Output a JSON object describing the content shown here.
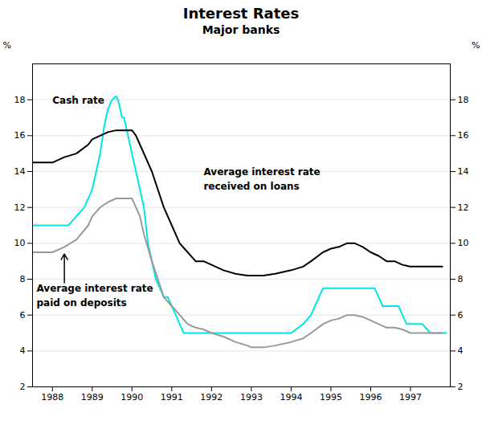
{
  "chart_data": {
    "type": "line",
    "title": "Interest Rates",
    "subtitle": "Major banks",
    "ylabel": "%",
    "y2label": "%",
    "xlim": [
      1987.5,
      1998.0
    ],
    "xticks": [
      1988,
      1989,
      1990,
      1991,
      1992,
      1993,
      1994,
      1995,
      1996,
      1997
    ],
    "ylim": [
      2,
      20
    ],
    "yticks": [
      2,
      4,
      6,
      8,
      10,
      12,
      14,
      16,
      18
    ],
    "y2lim": [
      2,
      20
    ],
    "y2ticks": [
      2,
      4,
      6,
      8,
      10,
      12,
      14,
      16,
      18
    ],
    "grid": true,
    "series": [
      {
        "color": "#00e5e5",
        "x": [
          1987.5,
          1987.7,
          1987.9,
          1988.0,
          1988.2,
          1988.4,
          1988.6,
          1988.8,
          1989.0,
          1989.1,
          1989.2,
          1989.3,
          1989.4,
          1989.5,
          1989.6,
          1989.65,
          1989.7,
          1989.75,
          1989.8,
          1990.0,
          1990.1,
          1990.2,
          1990.3,
          1990.4,
          1990.5,
          1990.6,
          1990.7,
          1990.8,
          1990.9,
          1991.0,
          1991.1,
          1991.2,
          1991.3,
          1991.4,
          1991.5,
          1991.6,
          1991.8,
          1992.0,
          1992.3,
          1992.6,
          1993.0,
          1993.5,
          1994.0,
          1994.3,
          1994.5,
          1994.6,
          1994.7,
          1994.8,
          1994.9,
          1995.0,
          1995.1,
          1995.2,
          1995.3,
          1995.5,
          1995.7,
          1995.8,
          1995.9,
          1996.0,
          1996.1,
          1996.2,
          1996.3,
          1996.4,
          1996.5,
          1996.6,
          1996.7,
          1996.8,
          1996.9,
          1997.0,
          1997.1,
          1997.2,
          1997.3,
          1997.5,
          1997.7,
          1997.9
        ],
        "values": [
          11.0,
          11.0,
          11.0,
          11.0,
          11.0,
          11.0,
          11.5,
          12.0,
          13.0,
          14.0,
          15.0,
          16.5,
          17.5,
          18.0,
          18.2,
          18.0,
          17.5,
          17.0,
          17.0,
          15.0,
          14.0,
          13.0,
          12.0,
          10.0,
          9.0,
          8.0,
          7.5,
          7.0,
          7.0,
          6.5,
          6.0,
          5.5,
          5.0,
          5.0,
          5.0,
          5.0,
          5.0,
          5.0,
          5.0,
          5.0,
          5.0,
          5.0,
          5.0,
          5.5,
          6.0,
          6.5,
          7.0,
          7.5,
          7.5,
          7.5,
          7.5,
          7.5,
          7.5,
          7.5,
          7.5,
          7.5,
          7.5,
          7.5,
          7.5,
          7.0,
          6.5,
          6.5,
          6.5,
          6.5,
          6.5,
          6.0,
          5.5,
          5.5,
          5.5,
          5.5,
          5.5,
          5.0,
          5.0,
          5.0
        ]
      },
      {
        "color": "#000000",
        "x": [
          1987.5,
          1987.7,
          1988.0,
          1988.3,
          1988.6,
          1988.9,
          1989.0,
          1989.2,
          1989.4,
          1989.6,
          1989.8,
          1990.0,
          1990.1,
          1990.2,
          1990.3,
          1990.5,
          1990.8,
          1991.0,
          1991.2,
          1991.4,
          1991.6,
          1991.8,
          1992.0,
          1992.3,
          1992.6,
          1992.9,
          1993.0,
          1993.3,
          1993.6,
          1994.0,
          1994.3,
          1994.5,
          1994.8,
          1995.0,
          1995.2,
          1995.4,
          1995.6,
          1995.8,
          1996.0,
          1996.2,
          1996.4,
          1996.6,
          1996.8,
          1997.0,
          1997.2,
          1997.5,
          1997.8
        ],
        "values": [
          14.5,
          14.5,
          14.5,
          14.8,
          15.0,
          15.5,
          15.8,
          16.0,
          16.2,
          16.3,
          16.3,
          16.3,
          16.0,
          15.5,
          15.0,
          14.0,
          12.0,
          11.0,
          10.0,
          9.5,
          9.0,
          9.0,
          8.8,
          8.5,
          8.3,
          8.2,
          8.2,
          8.2,
          8.3,
          8.5,
          8.7,
          9.0,
          9.5,
          9.7,
          9.8,
          10.0,
          10.0,
          9.8,
          9.5,
          9.3,
          9.0,
          9.0,
          8.8,
          8.7,
          8.7,
          8.7,
          8.7
        ]
      },
      {
        "color": "#999999",
        "x": [
          1987.5,
          1987.7,
          1988.0,
          1988.3,
          1988.6,
          1988.9,
          1989.0,
          1989.2,
          1989.4,
          1989.6,
          1989.8,
          1990.0,
          1990.1,
          1990.2,
          1990.3,
          1990.5,
          1990.8,
          1991.0,
          1991.2,
          1991.4,
          1991.6,
          1991.8,
          1992.0,
          1992.3,
          1992.6,
          1992.9,
          1993.0,
          1993.3,
          1993.6,
          1994.0,
          1994.3,
          1994.5,
          1994.8,
          1995.0,
          1995.2,
          1995.4,
          1995.6,
          1995.8,
          1996.0,
          1996.2,
          1996.4,
          1996.6,
          1996.8,
          1997.0,
          1997.2,
          1997.5,
          1997.8
        ],
        "values": [
          9.5,
          9.5,
          9.5,
          9.8,
          10.2,
          11.0,
          11.5,
          12.0,
          12.3,
          12.5,
          12.5,
          12.5,
          12.0,
          11.5,
          10.5,
          9.0,
          7.0,
          6.5,
          6.0,
          5.5,
          5.3,
          5.2,
          5.0,
          4.8,
          4.5,
          4.3,
          4.2,
          4.2,
          4.3,
          4.5,
          4.7,
          5.0,
          5.5,
          5.7,
          5.8,
          6.0,
          6.0,
          5.9,
          5.7,
          5.5,
          5.3,
          5.3,
          5.2,
          5.0,
          5.0,
          5.0,
          5.0
        ]
      }
    ],
    "annotations": [
      {
        "text": "Cash rate",
        "x": 1988.0,
        "y": 17.8
      },
      {
        "text": "Average interest rate",
        "x": 1991.8,
        "y": 13.8
      },
      {
        "text": "received on loans",
        "x": 1991.8,
        "y": 13.0
      },
      {
        "text": "Average interest rate",
        "x": 1987.6,
        "y": 7.3
      },
      {
        "text": "paid on deposits",
        "x": 1987.6,
        "y": 6.5
      }
    ],
    "arrows": [
      {
        "x": 1988.3,
        "y1": 7.8,
        "y2": 9.4
      }
    ]
  }
}
